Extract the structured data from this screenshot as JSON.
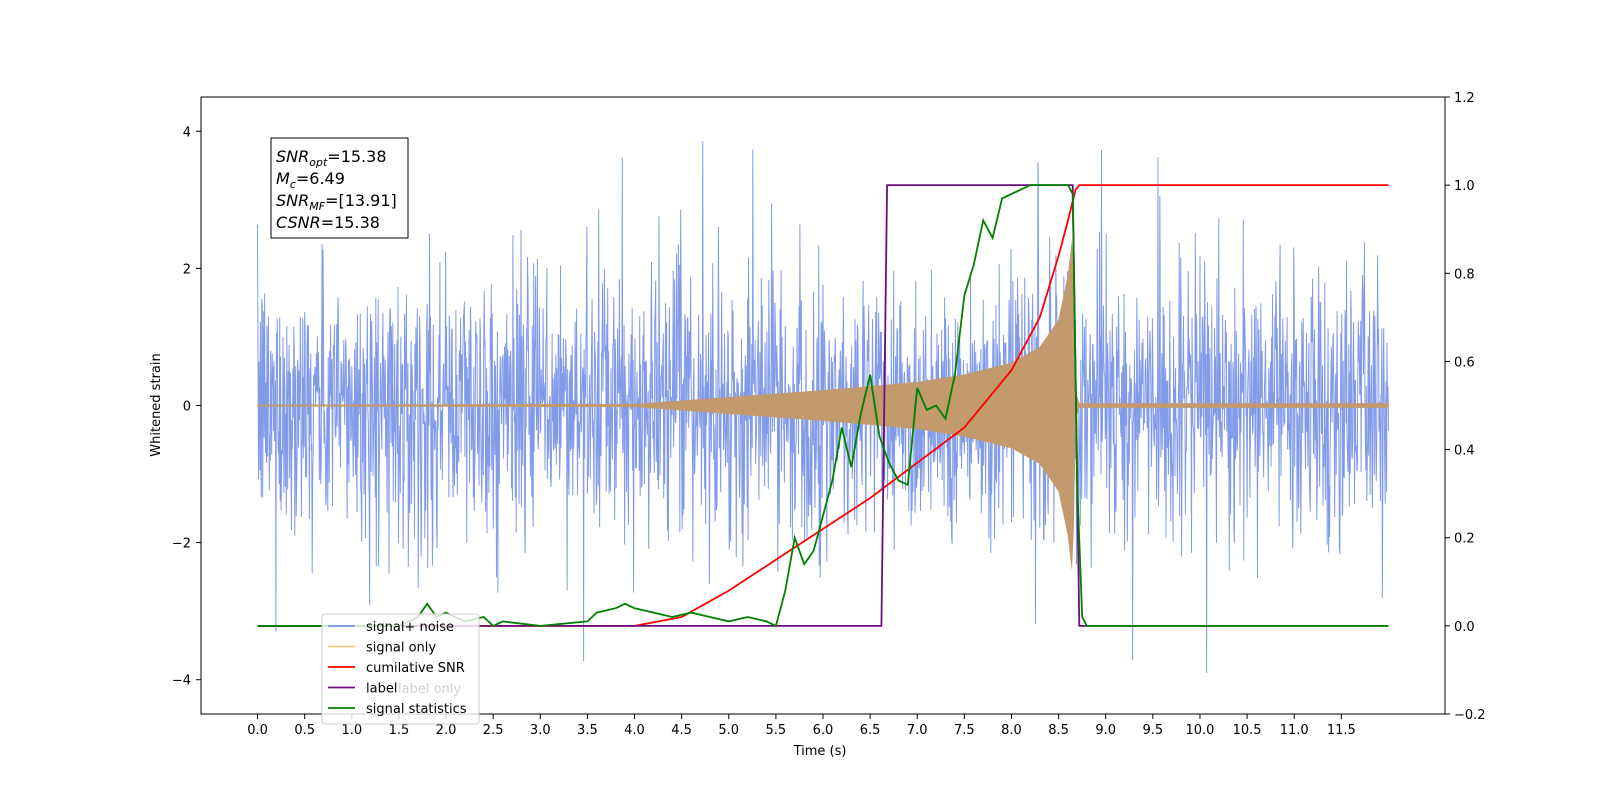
{
  "chart_data": {
    "type": "line",
    "xlabel": "Time (s)",
    "ylabel": "Whitened strain",
    "xlim": [
      -0.6,
      12.6
    ],
    "ylim_left": [
      -4.5,
      4.5
    ],
    "ylim_right": [
      -0.2,
      1.2
    ],
    "x_ticks": [
      "0.0",
      "0.5",
      "1.0",
      "1.5",
      "2.0",
      "2.5",
      "3.0",
      "3.5",
      "4.0",
      "4.5",
      "5.0",
      "5.5",
      "6.0",
      "6.5",
      "7.0",
      "7.5",
      "8.0",
      "8.5",
      "9.0",
      "9.5",
      "10.0",
      "10.5",
      "11.0",
      "11.5"
    ],
    "y_ticks_left": [
      "4",
      "2",
      "0",
      "−2",
      "−4"
    ],
    "y_ticks_right": [
      "1.2",
      "1.0",
      "0.8",
      "0.6",
      "0.4",
      "0.2",
      "0.0",
      "−0.2"
    ],
    "annotation": {
      "lines": [
        {
          "main": "SNR",
          "sub": "opt",
          "rest": "=15.38"
        },
        {
          "main": "M",
          "sub": "c",
          "rest": "=6.49"
        },
        {
          "main": "SNR",
          "sub": "MF",
          "rest": "=[13.91]"
        },
        {
          "main": "CSNR",
          "sub": "",
          "rest": "=15.38"
        }
      ]
    },
    "legend": {
      "location": "lower-left",
      "entries": [
        {
          "label": "signal+ noise",
          "color": "#7a96e8"
        },
        {
          "label": "signal only",
          "color": "#f5c88a"
        },
        {
          "label": "cumilative SNR",
          "color": "#ff0000"
        },
        {
          "label": "label",
          "color": "#6a0f7a"
        },
        {
          "label": "signal statistics",
          "color": "#008000"
        }
      ],
      "hidden_label": "label only"
    },
    "series": [
      {
        "name": "signal+ noise",
        "axis": "left",
        "color": "#7a96e8",
        "noise_amplitude": 2.0,
        "x_range": [
          0.0,
          12.0
        ]
      },
      {
        "name": "signal only",
        "axis": "left",
        "color": "#c29a6e",
        "envelope": {
          "x": [
            0.0,
            4.0,
            5.0,
            6.0,
            7.0,
            7.5,
            8.0,
            8.3,
            8.5,
            8.6,
            8.65,
            8.68,
            8.72,
            12.0
          ],
          "y": [
            0.01,
            0.02,
            0.12,
            0.22,
            0.34,
            0.45,
            0.62,
            0.85,
            1.25,
            1.9,
            2.5,
            0.2,
            0.03,
            0.03
          ]
        }
      },
      {
        "name": "cumilative SNR",
        "axis": "right",
        "color": "#ff0000",
        "x": [
          0.0,
          4.0,
          4.5,
          5.0,
          5.5,
          6.0,
          6.5,
          7.0,
          7.5,
          8.0,
          8.3,
          8.5,
          8.6,
          8.68,
          8.72,
          12.0
        ],
        "y": [
          0.0,
          0.0,
          0.02,
          0.08,
          0.15,
          0.22,
          0.29,
          0.37,
          0.45,
          0.58,
          0.7,
          0.84,
          0.92,
          0.99,
          1.0,
          1.0
        ]
      },
      {
        "name": "label",
        "axis": "right",
        "color": "#6a0f7a",
        "x": [
          0.0,
          6.62,
          6.68,
          8.65,
          8.72,
          12.0
        ],
        "y": [
          0.0,
          0.0,
          1.0,
          1.0,
          0.0,
          0.0
        ]
      },
      {
        "name": "signal statistics",
        "axis": "right",
        "color": "#008000",
        "x": [
          0.0,
          1.5,
          1.7,
          1.8,
          1.9,
          2.0,
          2.2,
          2.4,
          2.5,
          2.6,
          3.0,
          3.5,
          3.6,
          3.8,
          3.9,
          4.0,
          4.2,
          4.4,
          4.6,
          4.8,
          5.0,
          5.2,
          5.4,
          5.5,
          5.6,
          5.7,
          5.8,
          5.9,
          6.0,
          6.1,
          6.2,
          6.3,
          6.4,
          6.5,
          6.6,
          6.7,
          6.8,
          6.9,
          7.0,
          7.1,
          7.2,
          7.3,
          7.4,
          7.5,
          7.6,
          7.7,
          7.8,
          7.9,
          8.0,
          8.1,
          8.2,
          8.4,
          8.6,
          8.65,
          8.7,
          8.75,
          8.8,
          12.0
        ],
        "y": [
          0.0,
          0.0,
          0.02,
          0.05,
          0.02,
          0.03,
          0.01,
          0.02,
          0.0,
          0.01,
          0.0,
          0.01,
          0.03,
          0.04,
          0.05,
          0.04,
          0.03,
          0.02,
          0.03,
          0.02,
          0.01,
          0.02,
          0.01,
          0.0,
          0.08,
          0.2,
          0.14,
          0.17,
          0.25,
          0.33,
          0.45,
          0.36,
          0.48,
          0.57,
          0.43,
          0.37,
          0.33,
          0.32,
          0.54,
          0.49,
          0.5,
          0.47,
          0.57,
          0.75,
          0.82,
          0.92,
          0.88,
          0.97,
          0.98,
          0.99,
          1.0,
          1.0,
          1.0,
          0.98,
          0.3,
          0.02,
          0.0,
          0.0
        ]
      }
    ]
  }
}
